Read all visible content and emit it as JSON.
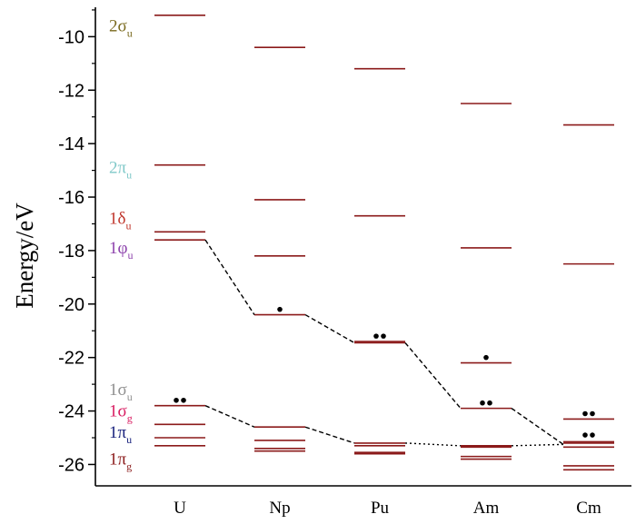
{
  "chart_data": {
    "type": "energy-level diagram",
    "title": "",
    "ylabel": "Energy/eV",
    "xlabel": "",
    "ylim": [
      -26.8,
      -8.9
    ],
    "yticks": [
      -10,
      -12,
      -14,
      -16,
      -18,
      -20,
      -22,
      -24,
      -26
    ],
    "ytick_labels": [
      "-10",
      "-12",
      "-14",
      "-16",
      "-18",
      "-20",
      "-22",
      "-24",
      "-26"
    ],
    "categories": [
      "U",
      "Np",
      "Pu",
      "Am",
      "Cm"
    ],
    "level_color": "#8b1a1a",
    "levels": [
      {
        "category": "U",
        "energies": [
          -9.2,
          -14.8,
          -17.3,
          -17.6,
          -23.8,
          -24.5,
          -25.0,
          -25.3
        ]
      },
      {
        "category": "Np",
        "energies": [
          -10.4,
          -16.1,
          -18.2,
          -20.4,
          -24.6,
          -25.1,
          -25.4,
          -25.5
        ]
      },
      {
        "category": "Pu",
        "energies": [
          -11.2,
          -16.7,
          -21.4,
          -21.45,
          -25.2,
          -25.3,
          -25.55,
          -25.6
        ]
      },
      {
        "category": "Am",
        "energies": [
          -12.5,
          -17.9,
          -22.2,
          -23.9,
          -25.3,
          -25.35,
          -25.7,
          -25.8
        ]
      },
      {
        "category": "Cm",
        "energies": [
          -13.3,
          -18.5,
          -24.3,
          -25.15,
          -25.2,
          -25.35,
          -26.05,
          -26.2
        ]
      }
    ],
    "electron_dots": [
      {
        "category": "U",
        "energy": -23.6,
        "count": 2
      },
      {
        "category": "Np",
        "energy": -20.2,
        "count": 1
      },
      {
        "category": "Pu",
        "energy": -21.2,
        "count": 2
      },
      {
        "category": "Am",
        "energy": -22.0,
        "count": 1
      },
      {
        "category": "Am",
        "energy": -23.7,
        "count": 2
      },
      {
        "category": "Cm",
        "energy": -24.1,
        "count": 2
      },
      {
        "category": "Cm",
        "energy": -24.9,
        "count": 2
      }
    ],
    "correlation_lines": [
      {
        "style": "dashed",
        "points": [
          [
            "U",
            -17.6
          ],
          [
            "Np",
            -20.4
          ],
          [
            "Pu",
            -21.45
          ],
          [
            "Am",
            -23.9
          ],
          [
            "Cm",
            -25.25
          ]
        ]
      },
      {
        "style": "dashed",
        "points": [
          [
            "U",
            -23.8
          ],
          [
            "Np",
            -24.6
          ],
          [
            "Pu",
            -25.2
          ]
        ]
      },
      {
        "style": "dotted",
        "points": [
          [
            "Pu",
            -25.2
          ],
          [
            "Am",
            -25.3
          ],
          [
            "Cm",
            -25.25
          ]
        ]
      }
    ],
    "orbital_labels": [
      {
        "main": "2σ",
        "sub": "u",
        "energy": -9.6,
        "color": "#7a6a1e"
      },
      {
        "main": "2π",
        "sub": "u",
        "energy": -14.9,
        "color": "#7fc8c8"
      },
      {
        "main": "1δ",
        "sub": "u",
        "energy": -16.8,
        "color": "#c0362c"
      },
      {
        "main": "1φ",
        "sub": "u",
        "energy": -17.9,
        "color": "#8e44ad"
      },
      {
        "main": "1σ",
        "sub": "u",
        "energy": -23.2,
        "color": "#909090"
      },
      {
        "main": "1σ",
        "sub": "g",
        "energy": -24.0,
        "color": "#d81b60"
      },
      {
        "main": "1π",
        "sub": "u",
        "energy": -24.8,
        "color": "#1a237e"
      },
      {
        "main": "1π",
        "sub": "g",
        "energy": -25.8,
        "color": "#8b1a1a"
      }
    ]
  }
}
